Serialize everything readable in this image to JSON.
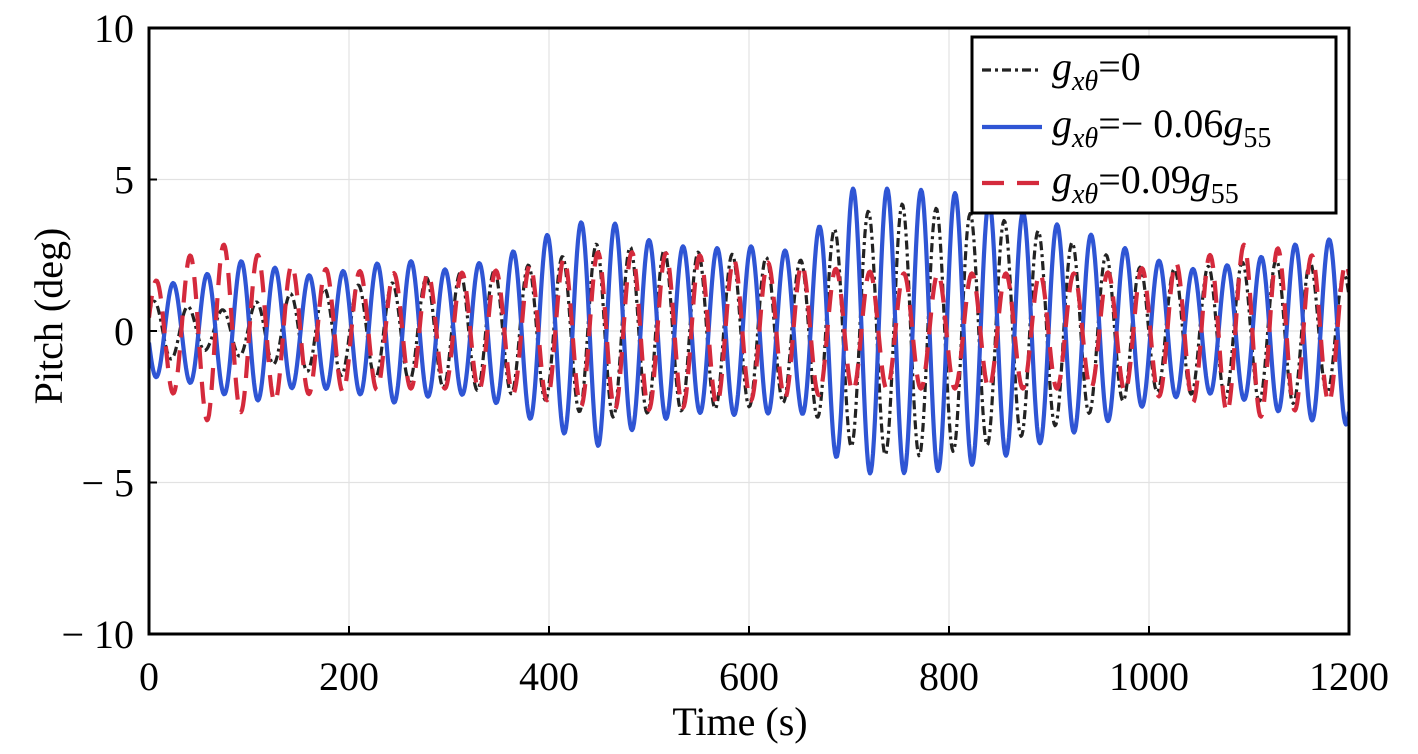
{
  "chart_data": {
    "type": "line",
    "xlabel": "Time (s)",
    "ylabel": "Pitch (deg)",
    "xlim": [
      0,
      1200
    ],
    "ylim": [
      -10,
      10
    ],
    "x_ticks": [
      0,
      200,
      400,
      600,
      800,
      1000,
      1200
    ],
    "y_ticks": [
      -10,
      -5,
      0,
      5,
      10
    ],
    "x_tick_labels": [
      "0",
      "200",
      "400",
      "600",
      "800",
      "1000",
      "1200"
    ],
    "y_tick_labels": [
      "− 10",
      "− 5",
      "0",
      "5",
      "10"
    ],
    "grid": true,
    "legend_position": "top-right",
    "series": [
      {
        "name": "g_{xθ}=0",
        "color": "#222222",
        "dash": "dashdot",
        "period": 34,
        "phase": 0.6,
        "envelope_t": [
          0,
          30,
          60,
          100,
          150,
          200,
          250,
          300,
          350,
          400,
          450,
          500,
          550,
          600,
          650,
          700,
          750,
          800,
          850,
          900,
          950,
          1000,
          1050,
          1100,
          1150,
          1200
        ],
        "envelope_amp": [
          1.0,
          0.9,
          0.6,
          0.9,
          1.3,
          1.5,
          1.6,
          1.9,
          2.0,
          2.3,
          2.9,
          2.7,
          2.6,
          2.5,
          2.3,
          3.8,
          4.2,
          4.0,
          3.7,
          3.2,
          2.6,
          2.0,
          2.1,
          2.3,
          2.4,
          1.8
        ]
      },
      {
        "name": "g_{xθ}=− 0.06g_{55}",
        "color": "#2f55d4",
        "dash": "solid",
        "period": 34,
        "phase": 3.4,
        "envelope_t": [
          0,
          30,
          60,
          100,
          150,
          200,
          250,
          300,
          350,
          400,
          450,
          500,
          550,
          600,
          650,
          700,
          750,
          800,
          850,
          900,
          950,
          1000,
          1050,
          1100,
          1150,
          1200
        ],
        "envelope_amp": [
          1.5,
          1.6,
          1.9,
          2.4,
          1.8,
          2.0,
          2.4,
          2.0,
          2.4,
          3.2,
          3.8,
          3.0,
          2.7,
          2.8,
          2.6,
          4.7,
          4.7,
          4.6,
          4.2,
          3.6,
          3.1,
          2.4,
          2.0,
          2.3,
          2.9,
          3.1
        ]
      },
      {
        "name": "g_{xθ}=0.09g_{55}",
        "color": "#d42a3c",
        "dash": "dashed",
        "period": 34,
        "phase": 0.3,
        "envelope_t": [
          0,
          30,
          60,
          100,
          150,
          200,
          250,
          300,
          350,
          400,
          450,
          500,
          550,
          600,
          650,
          700,
          750,
          800,
          850,
          900,
          950,
          1000,
          1050,
          1100,
          1150,
          1200
        ],
        "envelope_amp": [
          1.5,
          2.2,
          3.0,
          2.6,
          2.1,
          2.0,
          1.9,
          1.9,
          2.0,
          2.3,
          2.6,
          2.6,
          2.5,
          2.3,
          2.2,
          2.0,
          1.9,
          1.9,
          1.9,
          1.9,
          1.9,
          2.1,
          2.4,
          2.9,
          2.6,
          2.2
        ]
      }
    ]
  }
}
